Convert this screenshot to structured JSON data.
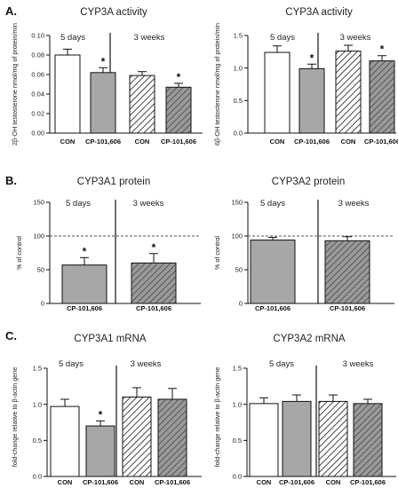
{
  "sections": [
    {
      "label": "A.",
      "panels": [
        0,
        1
      ]
    },
    {
      "label": "B.",
      "panels": [
        2,
        3
      ]
    },
    {
      "label": "C.",
      "panels": [
        4,
        5
      ]
    }
  ],
  "chart_data": [
    {
      "type": "bar",
      "title": "CYP3A activity",
      "ylabel": "2β-OH testosterone nmol/mg of protein/min",
      "ylim": [
        0,
        0.1
      ],
      "yticks": [
        "0.00",
        "0.02",
        "0.04",
        "0.06",
        "0.08",
        "0.10"
      ],
      "ytick_values": [
        0,
        0.02,
        0.04,
        0.06,
        0.08,
        0.1
      ],
      "groups": [
        {
          "label": "5 days"
        },
        {
          "label": "3 weeks"
        }
      ],
      "categories": [
        "CON",
        "CP-101,606",
        "CON",
        "CP-101,606"
      ],
      "values": [
        0.08,
        0.062,
        0.059,
        0.047
      ],
      "errors": [
        0.006,
        0.005,
        0.004,
        0.004
      ],
      "significant": [
        false,
        true,
        false,
        true
      ],
      "star_label": "*",
      "fills": [
        "white",
        "gray",
        "hatch-light",
        "hatch-dark"
      ]
    },
    {
      "type": "bar",
      "title": "CYP3A activity",
      "ylabel": "6β-OH testosterone nmol/mg of protein/min",
      "ylim": [
        0,
        1.5
      ],
      "yticks": [
        "0.0",
        "0.5",
        "1.0",
        "1.5"
      ],
      "ytick_values": [
        0,
        0.5,
        1.0,
        1.5
      ],
      "groups": [
        {
          "label": "5 days"
        },
        {
          "label": "3 weeks"
        }
      ],
      "categories": [
        "CON",
        "CP-101,606",
        "CON",
        "CP-101,606"
      ],
      "values": [
        1.24,
        0.99,
        1.26,
        1.11
      ],
      "errors": [
        0.1,
        0.07,
        0.09,
        0.08
      ],
      "significant": [
        false,
        true,
        false,
        true
      ],
      "star_label": "*",
      "fills": [
        "white",
        "gray",
        "hatch-light",
        "hatch-dark"
      ]
    },
    {
      "type": "bar",
      "title": "CYP3A1 protein",
      "ylabel": "% of control",
      "ylim": [
        0,
        150
      ],
      "yticks": [
        "0",
        "50",
        "100",
        "150"
      ],
      "ytick_values": [
        0,
        50,
        100,
        150
      ],
      "reference_line": 100,
      "groups": [
        {
          "label": "5 days"
        },
        {
          "label": "3 weeks"
        }
      ],
      "categories": [
        "CP-101,606",
        "CP-101,606"
      ],
      "values": [
        57,
        60
      ],
      "errors": [
        11,
        14
      ],
      "significant": [
        true,
        true
      ],
      "star_label": "*",
      "fills": [
        "gray",
        "hatch-dark"
      ]
    },
    {
      "type": "bar",
      "title": "CYP3A2 protein",
      "ylabel": "% of control",
      "ylim": [
        0,
        150
      ],
      "yticks": [
        "0",
        "50",
        "100",
        "150"
      ],
      "ytick_values": [
        0,
        50,
        100,
        150
      ],
      "reference_line": 100,
      "groups": [
        {
          "label": "5 days"
        },
        {
          "label": "3 weeks"
        }
      ],
      "categories": [
        "CP-101,606",
        "CP-101,606"
      ],
      "values": [
        94,
        93
      ],
      "errors": [
        4,
        6
      ],
      "significant": [
        false,
        false
      ],
      "star_label": "*",
      "fills": [
        "gray",
        "hatch-dark"
      ]
    },
    {
      "type": "bar",
      "title": "CYP3A1 mRNA",
      "ylabel": "fold-change relative to β-actin gene",
      "ylim": [
        0,
        1.5
      ],
      "yticks": [
        "0.0",
        "0.5",
        "1.0",
        "1.5"
      ],
      "ytick_values": [
        0,
        0.5,
        1.0,
        1.5
      ],
      "groups": [
        {
          "label": "5 days"
        },
        {
          "label": "3 weeks"
        }
      ],
      "categories": [
        "CON",
        "CP-101,606",
        "CON",
        "CP-101,606"
      ],
      "values": [
        0.97,
        0.7,
        1.1,
        1.07
      ],
      "errors": [
        0.1,
        0.07,
        0.13,
        0.15
      ],
      "significant": [
        false,
        true,
        false,
        false
      ],
      "star_label": "*",
      "fills": [
        "white",
        "gray",
        "hatch-light",
        "hatch-dark"
      ]
    },
    {
      "type": "bar",
      "title": "CYP3A2 mRNA",
      "ylabel": "fold-change relative to β-actin gene",
      "ylim": [
        0,
        1.5
      ],
      "yticks": [
        "0.0",
        "0.5",
        "1.0",
        "1.5"
      ],
      "ytick_values": [
        0,
        0.5,
        1.0,
        1.5
      ],
      "groups": [
        {
          "label": "5 days"
        },
        {
          "label": "3 weeks"
        }
      ],
      "categories": [
        "CON",
        "CP-101,606",
        "CON",
        "CP-101,606"
      ],
      "values": [
        1.01,
        1.04,
        1.04,
        1.01
      ],
      "errors": [
        0.08,
        0.09,
        0.09,
        0.06
      ],
      "significant": [
        false,
        false,
        false,
        false
      ],
      "star_label": "*",
      "fills": [
        "white",
        "gray",
        "hatch-light",
        "hatch-dark"
      ]
    }
  ],
  "colors": {
    "bar_gray": "#a7a7a7",
    "hatch_dark_bg": "#9a9a9a",
    "hatch_dark_line": "#555555",
    "hatch_light_bg": "#ffffff",
    "hatch_light_line": "#333333",
    "axis": "#111111",
    "text": "#222222"
  }
}
